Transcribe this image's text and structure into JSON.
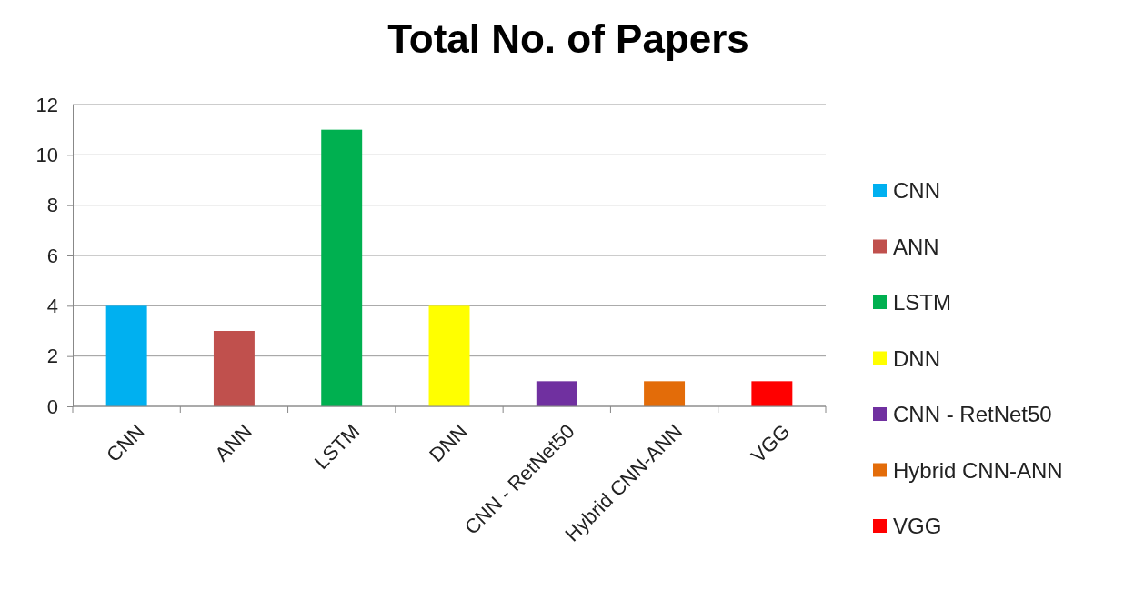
{
  "chart_data": {
    "type": "bar",
    "title": "Total No. of Papers",
    "categories": [
      "CNN",
      "ANN",
      "LSTM",
      "DNN",
      "CNN - RetNet50",
      "Hybrid CNN-ANN",
      "VGG"
    ],
    "stacked": true,
    "series": [
      {
        "name": "CNN",
        "color": "#00b0f0",
        "values": [
          4,
          null,
          null,
          null,
          null,
          null,
          null
        ]
      },
      {
        "name": "ANN",
        "color": "#c0504d",
        "values": [
          null,
          3,
          null,
          null,
          null,
          null,
          null
        ]
      },
      {
        "name": "LSTM",
        "color": "#00b050",
        "values": [
          null,
          null,
          11,
          null,
          null,
          null,
          null
        ]
      },
      {
        "name": "DNN",
        "color": "#ffff00",
        "values": [
          null,
          null,
          null,
          4,
          null,
          null,
          null
        ]
      },
      {
        "name": "CNN - RetNet50",
        "color": "#7030a0",
        "values": [
          null,
          null,
          null,
          null,
          1,
          null,
          null
        ]
      },
      {
        "name": "Hybrid CNN-ANN",
        "color": "#e36c09",
        "values": [
          null,
          null,
          null,
          null,
          null,
          1,
          null
        ]
      },
      {
        "name": "VGG",
        "color": "#ff0000",
        "values": [
          null,
          null,
          null,
          null,
          null,
          null,
          1
        ]
      }
    ],
    "ylim": [
      0,
      12
    ],
    "yticks": [
      0,
      2,
      4,
      6,
      8,
      10,
      12
    ],
    "grid": "y",
    "legend": "right"
  }
}
